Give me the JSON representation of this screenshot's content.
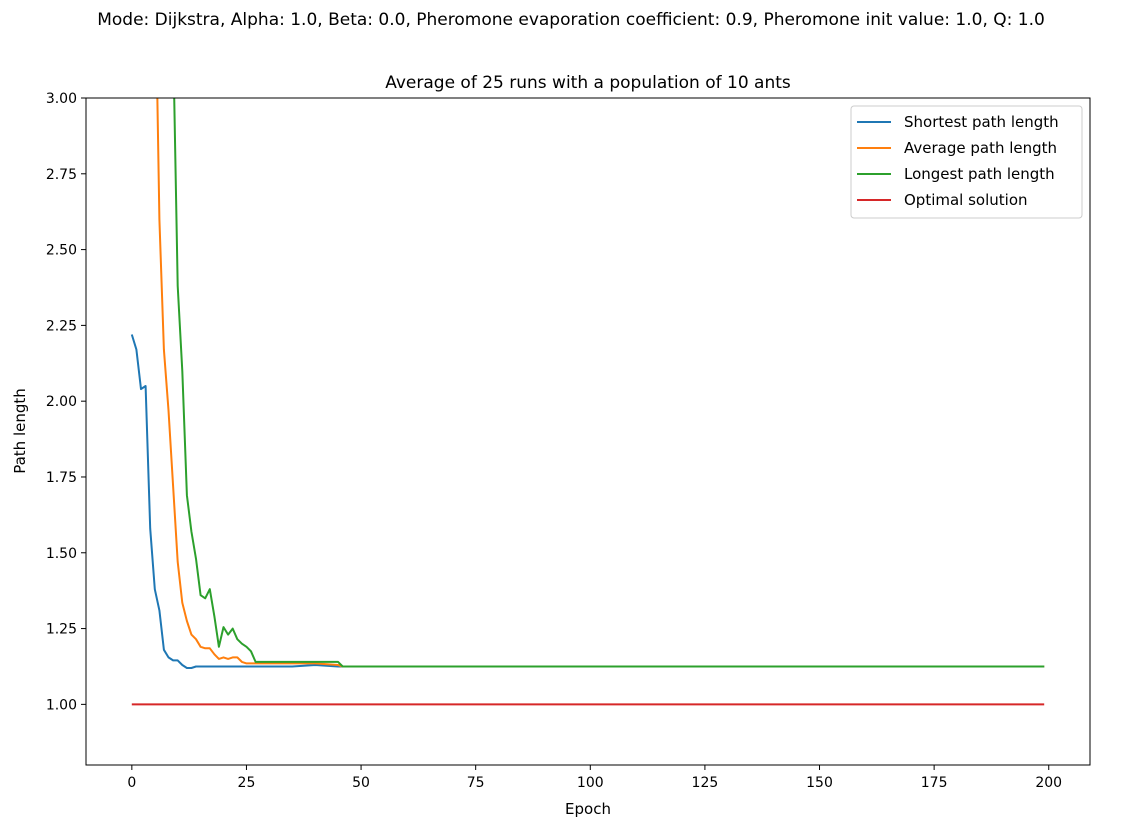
{
  "figure": {
    "suptitle": "Mode: Dijkstra, Alpha: 1.0, Beta: 0.0, Pheromone evaporation coefficient: 0.9, Pheromone init value: 1.0, Q: 1.0"
  },
  "chart_data": {
    "type": "line",
    "title": "Average of 25 runs with a population of 10 ants",
    "xlabel": "Epoch",
    "ylabel": "Path length",
    "xlim": [
      -10,
      209
    ],
    "ylim": [
      0.8,
      3.0
    ],
    "xticks": [
      0,
      25,
      50,
      75,
      100,
      125,
      150,
      175,
      200
    ],
    "yticks": [
      1.0,
      1.25,
      1.5,
      1.75,
      2.0,
      2.25,
      2.5,
      2.75,
      3.0
    ],
    "ytick_labels": [
      "1.00",
      "1.25",
      "1.50",
      "1.75",
      "2.00",
      "2.25",
      "2.50",
      "2.75",
      "3.00"
    ],
    "grid": false,
    "legend_position": "upper right",
    "series": [
      {
        "name": "Shortest path length",
        "color": "#1f77b4",
        "x": [
          0,
          1,
          2,
          3,
          4,
          5,
          6,
          7,
          8,
          9,
          10,
          11,
          12,
          13,
          14,
          15,
          20,
          25,
          30,
          35,
          40,
          45,
          50,
          199
        ],
        "y": [
          2.22,
          2.17,
          2.04,
          2.05,
          1.58,
          1.38,
          1.31,
          1.18,
          1.155,
          1.145,
          1.145,
          1.13,
          1.12,
          1.12,
          1.125,
          1.125,
          1.125,
          1.125,
          1.125,
          1.125,
          1.13,
          1.125,
          1.125,
          1.125
        ]
      },
      {
        "name": "Average path length",
        "color": "#ff7f0e",
        "x": [
          5,
          6,
          7,
          8,
          9,
          10,
          11,
          12,
          13,
          14,
          15,
          16,
          17,
          18,
          19,
          20,
          21,
          22,
          23,
          24,
          25,
          26,
          27,
          30,
          35,
          40,
          45,
          46,
          199
        ],
        "y": [
          3.5,
          2.6,
          2.17,
          1.97,
          1.72,
          1.47,
          1.335,
          1.275,
          1.23,
          1.215,
          1.19,
          1.185,
          1.185,
          1.165,
          1.15,
          1.155,
          1.15,
          1.155,
          1.155,
          1.14,
          1.135,
          1.135,
          1.135,
          1.135,
          1.135,
          1.135,
          1.13,
          1.125,
          1.125
        ]
      },
      {
        "name": "Longest path length",
        "color": "#2ca02c",
        "x": [
          9,
          10,
          11,
          12,
          13,
          14,
          15,
          16,
          17,
          18,
          19,
          20,
          21,
          22,
          23,
          24,
          25,
          26,
          27,
          28,
          35,
          40,
          45,
          46,
          199
        ],
        "y": [
          3.2,
          2.38,
          2.1,
          1.69,
          1.57,
          1.48,
          1.36,
          1.35,
          1.38,
          1.29,
          1.19,
          1.255,
          1.23,
          1.25,
          1.215,
          1.2,
          1.19,
          1.175,
          1.14,
          1.14,
          1.14,
          1.14,
          1.14,
          1.125,
          1.125
        ]
      },
      {
        "name": "Optimal solution",
        "color": "#d62728",
        "x": [
          0,
          199
        ],
        "y": [
          1.0,
          1.0
        ]
      }
    ]
  }
}
